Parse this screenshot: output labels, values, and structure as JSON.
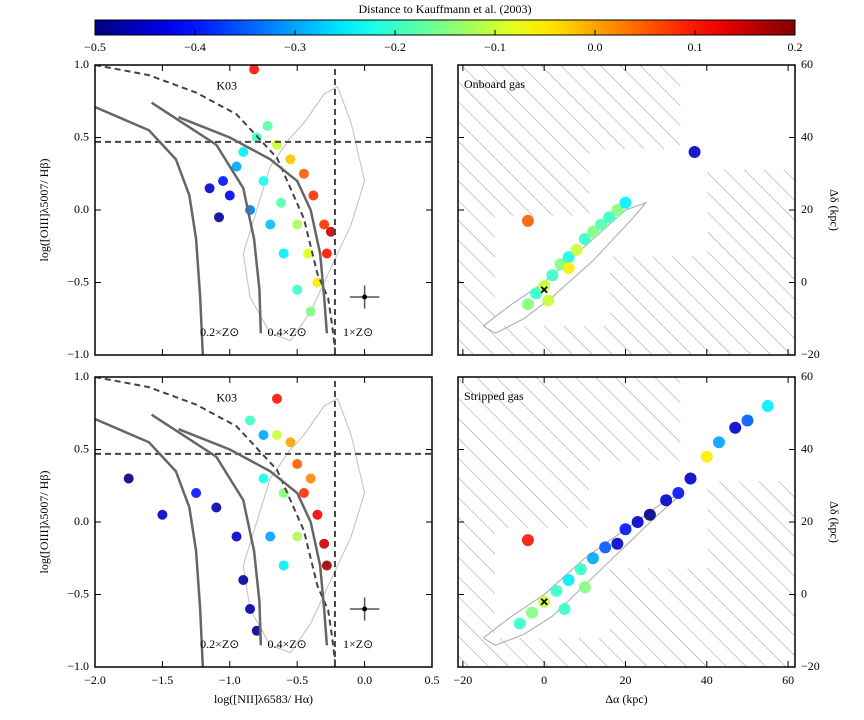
{
  "colorbar": {
    "title": "Distance to Kauffmann et al. (2003)",
    "lim": [
      -0.5,
      0.2
    ],
    "colormap": "jet",
    "ticks": [
      {
        "value": -0.5,
        "label": "−0.5"
      },
      {
        "value": -0.4,
        "label": "−0.4"
      },
      {
        "value": -0.3,
        "label": "−0.3"
      },
      {
        "value": -0.2,
        "label": "−0.2"
      },
      {
        "value": -0.1,
        "label": "−0.1"
      },
      {
        "value": 0.0,
        "label": "0.0"
      },
      {
        "value": 0.1,
        "label": "0.1"
      },
      {
        "value": 0.2,
        "label": "0.2"
      }
    ]
  },
  "chart_data": [
    {
      "type": "scatter",
      "ylabel": "log([OIII]λ5007/ Hβ)",
      "xlim": [
        -2.0,
        0.5
      ],
      "ylim": [
        -1.0,
        1.0
      ],
      "xticks": [
        -2.0,
        -1.5,
        -1.0,
        -0.5,
        0.0,
        0.5
      ],
      "show_xtick_labels": false,
      "yticks": [
        {
          "value": -1.0,
          "label": "−1.0"
        },
        {
          "value": -0.5,
          "label": "−0.5"
        },
        {
          "value": 0.0,
          "label": "0.0"
        },
        {
          "value": 0.5,
          "label": "0.5"
        },
        {
          "value": 1.0,
          "label": "1.0"
        }
      ],
      "annotations": [
        "K03",
        "0.2×Z⊙",
        "0.4×Z⊙",
        "1×Z⊙"
      ],
      "contours": [
        {
          "x": [
            -0.9,
            -0.7,
            -0.55,
            -0.45,
            -0.3,
            -0.2,
            -0.1,
            0.0,
            -0.1,
            -0.25,
            -0.4,
            -0.55,
            -0.7,
            -0.85,
            -0.9
          ],
          "y": [
            -0.3,
            0.3,
            0.5,
            0.6,
            0.8,
            0.85,
            0.6,
            0.2,
            -0.1,
            -0.4,
            -0.7,
            -0.9,
            -0.85,
            -0.6,
            -0.3
          ],
          "color": "#c8c8c8"
        }
      ],
      "lines": [
        {
          "x": [
            -2.0,
            -1.6,
            -1.25,
            -0.95,
            -0.65,
            -0.45,
            -0.35,
            -0.27,
            -0.24,
            -0.22
          ],
          "y": [
            1.0,
            0.93,
            0.81,
            0.66,
            0.36,
            -0.06,
            -0.44,
            -0.61,
            -0.8,
            -0.96
          ],
          "color": "#444444",
          "dashed": true
        },
        {
          "x": [
            -2.0,
            0.5
          ],
          "y": [
            0.47,
            0.47
          ],
          "color": "#444444",
          "dashed": true
        },
        {
          "x": [
            -0.22,
            -0.22
          ],
          "y": [
            -1.0,
            1.0
          ],
          "color": "#444444",
          "dashed": true
        },
        {
          "x": [
            -2.0,
            -1.6,
            -1.4,
            -1.3,
            -1.25,
            -1.22,
            -1.2
          ],
          "y": [
            0.71,
            0.55,
            0.35,
            0.1,
            -0.2,
            -0.6,
            -1.0
          ],
          "color": "#666666",
          "dashed": false
        },
        {
          "x": [
            -1.58,
            -1.1,
            -0.9,
            -0.82,
            -0.78,
            -0.77
          ],
          "y": [
            0.74,
            0.45,
            0.15,
            -0.2,
            -0.55,
            -0.85
          ],
          "color": "#666666",
          "dashed": false
        },
        {
          "x": [
            -1.38,
            -1.0,
            -0.7,
            -0.5,
            -0.4,
            -0.33,
            -0.3,
            -0.28
          ],
          "y": [
            0.64,
            0.5,
            0.35,
            0.2,
            0.0,
            -0.3,
            -0.6,
            -0.85
          ],
          "color": "#666666",
          "dashed": false
        }
      ],
      "x": [
        -1.05,
        -1.0,
        -0.95,
        -0.9,
        -0.85,
        -0.8,
        -0.75,
        -0.7,
        -0.65,
        -0.62,
        -0.6,
        -0.55,
        -0.5,
        -0.5,
        -0.45,
        -0.42,
        -0.4,
        -0.38,
        -0.35,
        -0.3,
        -0.28,
        -0.25,
        -1.15,
        -1.08,
        -0.72,
        -0.82
      ],
      "y": [
        0.2,
        0.1,
        0.3,
        0.4,
        0.0,
        0.5,
        0.2,
        -0.1,
        0.45,
        0.05,
        -0.3,
        0.35,
        -0.1,
        -0.55,
        0.25,
        -0.3,
        -0.7,
        0.1,
        -0.5,
        -0.1,
        -0.3,
        -0.15,
        0.15,
        -0.05,
        0.58,
        0.97
      ],
      "values": [
        -0.4,
        -0.42,
        -0.3,
        -0.25,
        -0.33,
        -0.2,
        -0.22,
        -0.28,
        -0.1,
        -0.18,
        -0.25,
        -0.02,
        -0.12,
        -0.2,
        0.05,
        -0.08,
        -0.15,
        0.08,
        -0.05,
        0.08,
        0.1,
        0.15,
        -0.45,
        -0.48,
        -0.18,
        0.1
      ],
      "errorbar": {
        "x": 0.0,
        "y": -0.6,
        "xerr": 0.11,
        "yerr": 0.08
      }
    },
    {
      "type": "scatter",
      "label": "Onboard gas",
      "ylabel": "Δδ (kpc)",
      "yaxis_side": "right",
      "hatch": true,
      "xlim": [
        -21.2,
        61.7
      ],
      "ylim": [
        -20,
        60
      ],
      "xticks": [
        -20,
        0,
        20,
        40,
        60
      ],
      "show_xtick_labels": false,
      "yticks": [
        {
          "value": -20,
          "label": "−20"
        },
        0,
        20,
        40,
        60
      ],
      "contours": [
        {
          "x": [
            -15,
            -8,
            0,
            10,
            20,
            25,
            22,
            12,
            2,
            -5,
            -12,
            -15
          ],
          "y": [
            -12,
            -6,
            0,
            10,
            20,
            22,
            18,
            6,
            -4,
            -10,
            -14,
            -12
          ],
          "color": "#b4b4b4"
        }
      ],
      "x": [
        -4,
        -2,
        0,
        2,
        4,
        6,
        8,
        10,
        12,
        14,
        16,
        18,
        20,
        -4,
        37,
        6,
        1
      ],
      "y": [
        -6,
        -3,
        -1,
        2,
        5,
        7,
        9,
        12,
        14,
        16,
        18,
        20,
        22,
        17,
        36,
        4,
        -5
      ],
      "values": [
        -0.15,
        -0.2,
        -0.1,
        -0.2,
        -0.15,
        -0.22,
        -0.1,
        -0.2,
        -0.15,
        -0.18,
        -0.2,
        -0.15,
        -0.25,
        0.05,
        -0.45,
        -0.05,
        -0.1
      ],
      "center": {
        "x": 0,
        "y": -2
      }
    },
    {
      "type": "scatter",
      "xlabel": "log([NII]λ6583/ Hα)",
      "ylabel": "log([OIII]λ5007/ Hβ)",
      "xlim": [
        -2.0,
        0.5
      ],
      "ylim": [
        -1.0,
        1.0
      ],
      "xticks": [
        {
          "value": -2.0,
          "label": "−2.0"
        },
        {
          "value": -1.5,
          "label": "−1.5"
        },
        {
          "value": -1.0,
          "label": "−1.0"
        },
        {
          "value": -0.5,
          "label": "−0.5"
        },
        {
          "value": 0.0,
          "label": "0.0"
        },
        {
          "value": 0.5,
          "label": "0.5"
        }
      ],
      "yticks": [
        {
          "value": -1.0,
          "label": "−1.0"
        },
        {
          "value": -0.5,
          "label": "−0.5"
        },
        {
          "value": 0.0,
          "label": "0.0"
        },
        {
          "value": 0.5,
          "label": "0.5"
        },
        {
          "value": 1.0,
          "label": "1.0"
        }
      ],
      "annotations": [
        "K03",
        "0.2×Z⊙",
        "0.4×Z⊙",
        "1×Z⊙"
      ],
      "contours": [
        {
          "x": [
            -0.9,
            -0.7,
            -0.55,
            -0.45,
            -0.3,
            -0.2,
            -0.1,
            0.0,
            -0.1,
            -0.25,
            -0.4,
            -0.55,
            -0.7,
            -0.85,
            -0.9
          ],
          "y": [
            -0.3,
            0.3,
            0.5,
            0.6,
            0.8,
            0.85,
            0.6,
            0.2,
            -0.1,
            -0.4,
            -0.7,
            -0.9,
            -0.85,
            -0.6,
            -0.3
          ],
          "color": "#c8c8c8"
        }
      ],
      "lines": [
        {
          "x": [
            -2.0,
            -1.6,
            -1.25,
            -0.95,
            -0.65,
            -0.45,
            -0.35,
            -0.27,
            -0.24,
            -0.22
          ],
          "y": [
            1.0,
            0.93,
            0.81,
            0.66,
            0.36,
            -0.06,
            -0.44,
            -0.61,
            -0.8,
            -0.96
          ],
          "color": "#444444",
          "dashed": true
        },
        {
          "x": [
            -2.0,
            0.5
          ],
          "y": [
            0.47,
            0.47
          ],
          "color": "#444444",
          "dashed": true
        },
        {
          "x": [
            -0.22,
            -0.22
          ],
          "y": [
            -1.0,
            1.0
          ],
          "color": "#444444",
          "dashed": true
        },
        {
          "x": [
            -2.0,
            -1.6,
            -1.4,
            -1.3,
            -1.25,
            -1.22,
            -1.2
          ],
          "y": [
            0.71,
            0.55,
            0.35,
            0.1,
            -0.2,
            -0.6,
            -1.0
          ],
          "color": "#666666",
          "dashed": false
        },
        {
          "x": [
            -1.58,
            -1.1,
            -0.9,
            -0.82,
            -0.78,
            -0.77
          ],
          "y": [
            0.74,
            0.45,
            0.15,
            -0.2,
            -0.55,
            -0.85
          ],
          "color": "#666666",
          "dashed": false
        },
        {
          "x": [
            -1.38,
            -1.0,
            -0.7,
            -0.5,
            -0.4,
            -0.33,
            -0.3,
            -0.28
          ],
          "y": [
            0.64,
            0.5,
            0.35,
            0.2,
            0.0,
            -0.3,
            -0.6,
            -0.85
          ],
          "color": "#666666",
          "dashed": false
        }
      ],
      "x": [
        -1.75,
        -1.5,
        -1.25,
        -1.1,
        -0.95,
        -0.9,
        -0.85,
        -0.8,
        -0.75,
        -0.65,
        -0.55,
        -0.5,
        -0.45,
        -0.35,
        -0.3,
        -0.28,
        -0.6,
        -0.7,
        -0.6,
        -0.5,
        -0.4,
        -0.75,
        -0.85,
        -0.65
      ],
      "y": [
        0.3,
        0.05,
        0.2,
        0.1,
        -0.1,
        -0.4,
        -0.6,
        -0.75,
        0.6,
        0.6,
        0.55,
        0.4,
        0.2,
        0.05,
        -0.15,
        -0.3,
        0.2,
        -0.1,
        -0.3,
        -0.1,
        0.3,
        0.3,
        0.7,
        0.85
      ],
      "values": [
        -0.5,
        -0.45,
        -0.4,
        -0.47,
        -0.45,
        -0.48,
        -0.47,
        -0.5,
        -0.3,
        -0.1,
        0.0,
        0.05,
        0.08,
        0.12,
        0.15,
        0.18,
        -0.15,
        -0.3,
        -0.25,
        -0.12,
        0.02,
        -0.22,
        -0.2,
        0.1
      ],
      "errorbar": {
        "x": 0.0,
        "y": -0.6,
        "xerr": 0.11,
        "yerr": 0.08
      }
    },
    {
      "type": "scatter",
      "label": "Stripped gas",
      "xlabel": "Δα (kpc)",
      "ylabel": "Δδ (kpc)",
      "yaxis_side": "right",
      "hatch": true,
      "xlim": [
        -21.2,
        61.7
      ],
      "ylim": [
        -20,
        60
      ],
      "xticks": [
        {
          "value": -20,
          "label": "−20"
        },
        0,
        20,
        40,
        60
      ],
      "yticks": [
        {
          "value": -20,
          "label": "−20"
        },
        0,
        20,
        40,
        60
      ],
      "contours": [
        {
          "x": [
            -15,
            -8,
            0,
            10,
            20,
            30,
            34,
            28,
            15,
            2,
            -5,
            -12,
            -15
          ],
          "y": [
            -12,
            -6,
            0,
            10,
            18,
            26,
            28,
            22,
            8,
            -6,
            -11,
            -14,
            -12
          ],
          "color": "#b4b4b4"
        }
      ],
      "x": [
        -6,
        -3,
        0,
        3,
        6,
        9,
        12,
        15,
        18,
        20,
        23,
        26,
        30,
        33,
        36,
        40,
        43,
        47,
        50,
        55,
        -4,
        10,
        5
      ],
      "y": [
        -8,
        -5,
        -2,
        1,
        4,
        7,
        10,
        13,
        14,
        18,
        20,
        22,
        26,
        28,
        32,
        38,
        42,
        46,
        48,
        52,
        15,
        2,
        -4
      ],
      "values": [
        -0.2,
        -0.15,
        -0.1,
        -0.2,
        -0.25,
        -0.2,
        -0.3,
        -0.35,
        -0.45,
        -0.4,
        -0.45,
        -0.5,
        -0.45,
        -0.4,
        -0.45,
        -0.05,
        -0.3,
        -0.45,
        -0.35,
        -0.25,
        0.1,
        -0.15,
        -0.2
      ],
      "center": {
        "x": 0,
        "y": -2
      }
    }
  ]
}
